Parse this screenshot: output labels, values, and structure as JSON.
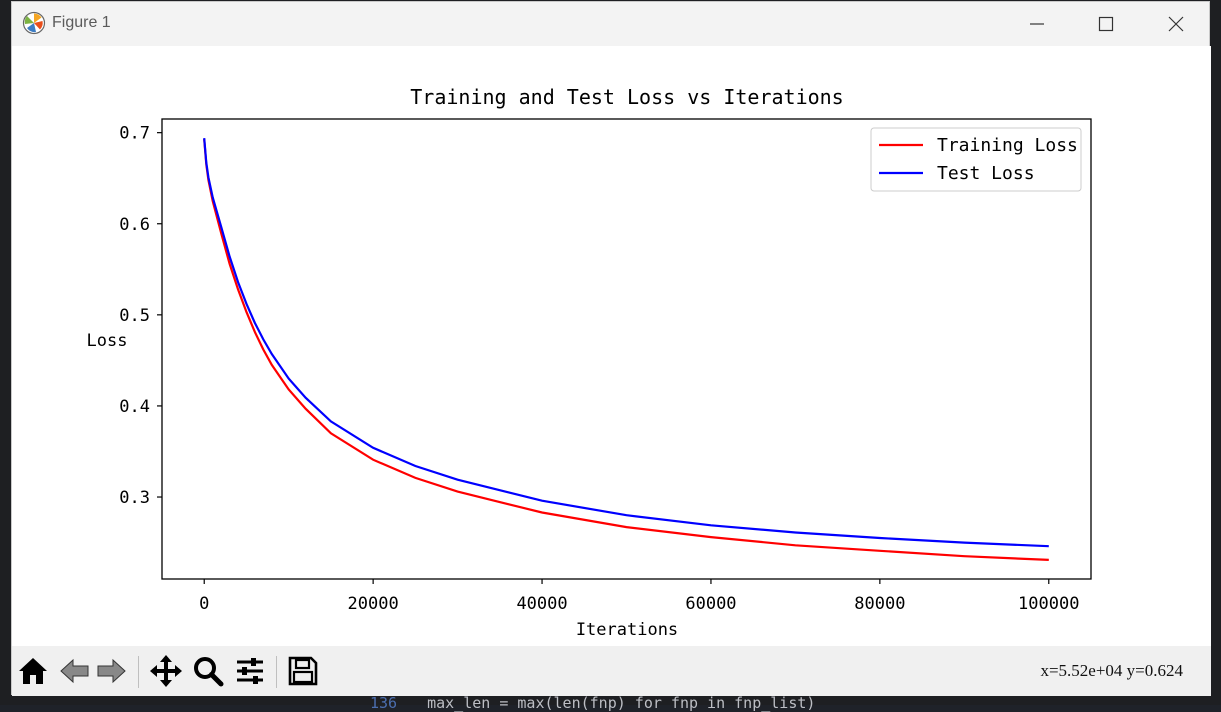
{
  "window": {
    "title": "Figure 1"
  },
  "editor": {
    "line_number": "136",
    "code": "max_len = max(len(fnp) for fnp in fnp_list)"
  },
  "toolbar": {
    "buttons": [
      "home-icon",
      "back-icon",
      "forward-icon",
      "pan-icon",
      "zoom-icon",
      "configure-icon",
      "save-icon"
    ],
    "coords": "x=5.52e+04 y=0.624"
  },
  "colors": {
    "training": "#ff0000",
    "test": "#0000ff"
  },
  "chart_data": {
    "type": "line",
    "title": "Training and Test Loss vs Iterations",
    "xlabel": "Iterations",
    "ylabel": "Loss",
    "xlim": [
      -5000,
      105000
    ],
    "ylim": [
      0.21,
      0.715
    ],
    "xticks": [
      0,
      20000,
      40000,
      60000,
      80000,
      100000
    ],
    "xtick_labels": [
      "0",
      "20000",
      "40000",
      "60000",
      "80000",
      "100000"
    ],
    "yticks": [
      0.3,
      0.4,
      0.5,
      0.6,
      0.7
    ],
    "ytick_labels": [
      "0.3",
      "0.4",
      "0.5",
      "0.6",
      "0.7"
    ],
    "legend_position": "top-right",
    "grid": false,
    "x": [
      0,
      250,
      500,
      1000,
      2000,
      3000,
      4000,
      5000,
      6000,
      7000,
      8000,
      10000,
      12000,
      15000,
      20000,
      25000,
      30000,
      40000,
      50000,
      60000,
      70000,
      80000,
      90000,
      100000
    ],
    "series": [
      {
        "name": "Training Loss",
        "values": [
          0.693,
          0.665,
          0.648,
          0.625,
          0.59,
          0.556,
          0.528,
          0.503,
          0.481,
          0.462,
          0.445,
          0.418,
          0.397,
          0.37,
          0.341,
          0.321,
          0.306,
          0.283,
          0.267,
          0.256,
          0.247,
          0.241,
          0.235,
          0.231
        ]
      },
      {
        "name": "Test Loss",
        "values": [
          0.694,
          0.667,
          0.651,
          0.629,
          0.597,
          0.564,
          0.536,
          0.512,
          0.491,
          0.473,
          0.457,
          0.43,
          0.409,
          0.383,
          0.354,
          0.334,
          0.319,
          0.296,
          0.28,
          0.269,
          0.261,
          0.255,
          0.25,
          0.246
        ]
      }
    ]
  }
}
